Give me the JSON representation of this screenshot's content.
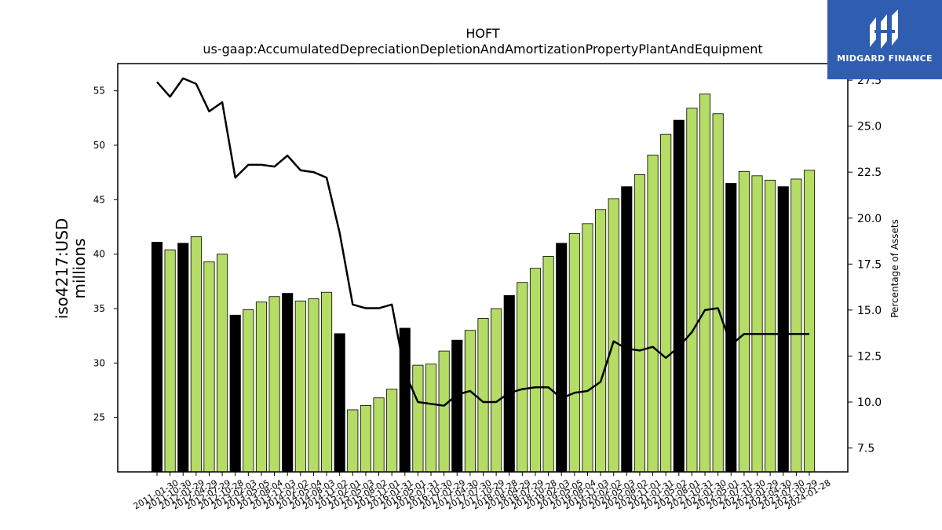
{
  "chart_data": {
    "type": "bar",
    "title": "HOFT",
    "subtitle": "us-gaap:AccumulatedDepreciationDepletionAndAmortizationPropertyPlantAndEquipment",
    "ylabel": "iso4217:USD",
    "ylabel_line2": "millions",
    "y2label": "Percentage of Assets",
    "ylim": [
      20.0,
      57.5
    ],
    "y2lim": [
      6.2,
      28.4
    ],
    "yticks": [
      "25",
      "30",
      "35",
      "40",
      "45",
      "50",
      "55"
    ],
    "y2ticks": [
      "7.5",
      "10.0",
      "12.5",
      "15.0",
      "17.5",
      "20.0",
      "22.5",
      "25.0",
      "27.5"
    ],
    "grid": false,
    "colors": {
      "bar_highlight": "#000000",
      "bar_default": "#b5dc65",
      "line": "#000000",
      "logo_bg": "#2f5db0"
    },
    "categories": [
      "2011-01-30",
      "2011-10-30",
      "2012-01-29",
      "2012-04-29",
      "2012-07-29",
      "2012-10-28",
      "2013-02-03",
      "2013-05-05",
      "2013-08-04",
      "2013-11-03",
      "2014-02-02",
      "2014-05-04",
      "2014-08-03",
      "2014-11-02",
      "2015-02-01",
      "2015-05-03",
      "2015-08-02",
      "2015-11-01",
      "2016-01-31",
      "2016-05-01",
      "2016-07-31",
      "2016-10-30",
      "2017-01-29",
      "2017-04-30",
      "2017-07-30",
      "2017-10-29",
      "2018-01-28",
      "2018-04-29",
      "2018-07-29",
      "2018-10-28",
      "2019-02-03",
      "2019-05-05",
      "2019-08-04",
      "2019-11-03",
      "2020-02-02",
      "2020-05-03",
      "2020-08-02",
      "2020-11-01",
      "2021-01-31",
      "2021-05-02",
      "2021-08-01",
      "2021-10-31",
      "2022-01-30",
      "2022-05-01",
      "2022-07-31",
      "2022-10-30",
      "2023-01-29",
      "2023-04-30",
      "2023-07-30",
      "2023-10-29",
      "2024-01-28"
    ],
    "xticklabels": [
      "2011-01-30",
      "2011-10-30",
      "2012-01-29",
      "2012-04-29",
      "2012-07-29",
      "2012-10-28",
      "2013-02-03",
      "2013-05-05",
      "2013-08-04",
      "2013-11-03",
      "2014-02-02",
      "2014-05-04",
      "2014-08-03",
      "2014-11-02",
      "2015-02-01",
      "2015-05-03",
      "2015-08-02",
      "2015-11-01",
      "2016-01-31",
      "2016-05-01",
      "2016-07-31",
      "2016-10-30",
      "2017-01-29",
      "2017-04-30",
      "2017-07-30",
      "2017-10-29",
      "2018-01-28",
      "2018-04-29",
      "2018-07-29",
      "2018-10-28",
      "2019-02-03",
      "2019-05-05",
      "2019-08-04",
      "2019-11-03",
      "2020-02-02",
      "2020-05-03",
      "2020-08-02",
      "2020-11-01",
      "2021-01-31",
      "2021-05-02",
      "2021-08-01",
      "2021-10-31",
      "2022-01-30",
      "2022-05-01",
      "2022-07-31",
      "2022-10-30",
      "2023-01-29",
      "2023-04-30",
      "2023-07-30",
      "2023-10-29",
      "2024-01-28"
    ],
    "highlight": [
      true,
      false,
      true,
      false,
      false,
      false,
      true,
      false,
      false,
      false,
      true,
      false,
      false,
      false,
      true,
      false,
      false,
      false,
      false,
      true,
      false,
      false,
      false,
      true,
      false,
      false,
      false,
      true,
      false,
      false,
      false,
      true,
      false,
      false,
      false,
      false,
      true,
      false,
      false,
      false,
      true,
      false,
      false,
      false,
      true,
      false,
      false,
      false,
      true,
      false,
      false
    ],
    "series": [
      {
        "values": [
          41.1,
          40.4,
          41.0,
          41.6,
          39.3,
          40.0,
          34.4,
          34.9,
          35.6,
          36.1,
          36.4,
          35.7,
          35.9,
          36.5,
          32.7,
          25.7,
          26.1,
          26.8,
          27.6,
          33.2,
          29.8,
          29.9,
          31.1,
          32.1,
          33.0,
          34.1,
          35.0,
          36.2,
          37.4,
          38.7,
          39.8,
          41.0,
          41.9,
          42.8,
          44.1,
          45.1,
          46.2,
          47.3,
          49.1,
          51.0,
          52.3,
          53.4,
          54.7,
          52.9,
          46.5,
          47.6,
          47.2,
          46.8,
          46.2,
          46.9,
          47.7
        ]
      },
      {
        "axis": "right",
        "values": [
          27.4,
          26.6,
          27.6,
          27.3,
          25.8,
          26.3,
          22.2,
          22.9,
          22.9,
          22.8,
          23.4,
          22.6,
          22.5,
          22.2,
          19.2,
          15.3,
          15.1,
          15.1,
          15.3,
          11.6,
          10.0,
          9.9,
          9.8,
          10.4,
          10.6,
          10.0,
          10.0,
          10.5,
          10.7,
          10.8,
          10.8,
          10.2,
          10.5,
          10.6,
          11.1,
          13.3,
          12.9,
          12.8,
          13.0,
          12.4,
          13.0,
          13.8,
          15.0,
          15.1,
          13.1,
          13.7,
          13.7,
          13.7,
          13.7,
          13.7,
          13.7
        ]
      }
    ]
  },
  "logo": {
    "text": "MIDGARD FINANCE"
  }
}
